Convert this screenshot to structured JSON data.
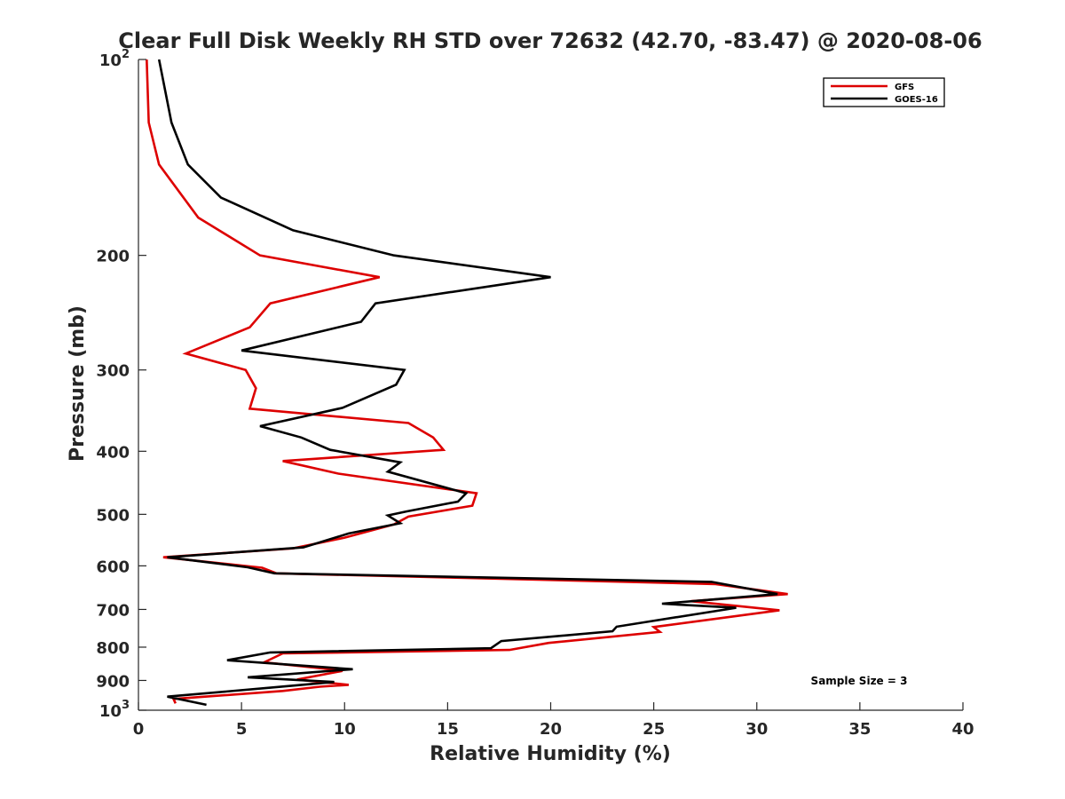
{
  "chart_data": {
    "type": "line",
    "title": "Clear Full Disk Weekly RH STD over 72632 (42.70, -83.47) @ 2020-08-06",
    "xlabel": "Relative Humidity (%)",
    "ylabel": "Pressure (mb)",
    "xlim": [
      0,
      40
    ],
    "ylim": [
      100,
      1000
    ],
    "y_scale": "log",
    "y_reversed": true,
    "x_ticks": [
      "0",
      "5",
      "10",
      "15",
      "20",
      "25",
      "30",
      "35",
      "40"
    ],
    "y_ticks": [
      {
        "value": 100,
        "base": "10",
        "exp": "2"
      },
      {
        "value": 200,
        "label": "200"
      },
      {
        "value": 300,
        "label": "300"
      },
      {
        "value": 400,
        "label": "400"
      },
      {
        "value": 500,
        "label": "500"
      },
      {
        "value": 600,
        "label": "600"
      },
      {
        "value": 700,
        "label": "700"
      },
      {
        "value": 800,
        "label": "800"
      },
      {
        "value": 900,
        "label": "900"
      },
      {
        "value": 1000,
        "base": "10",
        "exp": "3"
      }
    ],
    "grid": false,
    "legend_position": "top-right",
    "annotation": "Sample Size = 3",
    "series": [
      {
        "name": "GFS",
        "color": "#dd0000",
        "points": [
          [
            0.4,
            100
          ],
          [
            0.5,
            125
          ],
          [
            1.0,
            145
          ],
          [
            2.9,
            175
          ],
          [
            5.9,
            200
          ],
          [
            11.7,
            216
          ],
          [
            6.4,
            237
          ],
          [
            5.4,
            258
          ],
          [
            2.3,
            283
          ],
          [
            5.2,
            300
          ],
          [
            5.7,
            320
          ],
          [
            5.4,
            344
          ],
          [
            13.1,
            362
          ],
          [
            14.3,
            381
          ],
          [
            14.8,
            398
          ],
          [
            7.0,
            414
          ],
          [
            9.7,
            433
          ],
          [
            16.4,
            464
          ],
          [
            16.2,
            485
          ],
          [
            13.1,
            504
          ],
          [
            12.4,
            518
          ],
          [
            10.0,
            543
          ],
          [
            7.5,
            564
          ],
          [
            1.2,
            582
          ],
          [
            6.0,
            604
          ],
          [
            6.7,
            616
          ],
          [
            28.0,
            640
          ],
          [
            31.5,
            663
          ],
          [
            26.8,
            680
          ],
          [
            31.1,
            702
          ],
          [
            25.0,
            745
          ],
          [
            25.3,
            758
          ],
          [
            19.9,
            788
          ],
          [
            18.0,
            808
          ],
          [
            7.0,
            818
          ],
          [
            6.1,
            844
          ],
          [
            9.3,
            865
          ],
          [
            9.9,
            870
          ],
          [
            7.7,
            897
          ],
          [
            10.2,
            914
          ],
          [
            8.8,
            920
          ],
          [
            7.0,
            934
          ],
          [
            1.7,
            961
          ],
          [
            1.8,
            976
          ]
        ]
      },
      {
        "name": "GOES-16",
        "color": "#000000",
        "points": [
          [
            1.0,
            100
          ],
          [
            1.6,
            125
          ],
          [
            2.4,
            145
          ],
          [
            4.0,
            163
          ],
          [
            7.5,
            183
          ],
          [
            12.4,
            200
          ],
          [
            20.0,
            216
          ],
          [
            11.5,
            237
          ],
          [
            10.8,
            253
          ],
          [
            5.0,
            280
          ],
          [
            12.9,
            300
          ],
          [
            12.5,
            316
          ],
          [
            9.9,
            343
          ],
          [
            5.9,
            366
          ],
          [
            7.9,
            381
          ],
          [
            9.3,
            398
          ],
          [
            12.7,
            416
          ],
          [
            12.1,
            430
          ],
          [
            15.9,
            464
          ],
          [
            15.5,
            478
          ],
          [
            13.0,
            495
          ],
          [
            12.1,
            502
          ],
          [
            12.7,
            516
          ],
          [
            10.2,
            535
          ],
          [
            8.0,
            562
          ],
          [
            1.4,
            582
          ],
          [
            5.3,
            603
          ],
          [
            6.6,
            616
          ],
          [
            27.8,
            635
          ],
          [
            31.0,
            663
          ],
          [
            25.4,
            686
          ],
          [
            29.0,
            696
          ],
          [
            23.2,
            744
          ],
          [
            23.0,
            756
          ],
          [
            17.6,
            783
          ],
          [
            17.1,
            803
          ],
          [
            6.4,
            815
          ],
          [
            4.3,
            838
          ],
          [
            10.4,
            865
          ],
          [
            5.3,
            890
          ],
          [
            9.5,
            905
          ],
          [
            6.1,
            925
          ],
          [
            1.4,
            953
          ],
          [
            3.3,
            981
          ]
        ]
      }
    ]
  }
}
